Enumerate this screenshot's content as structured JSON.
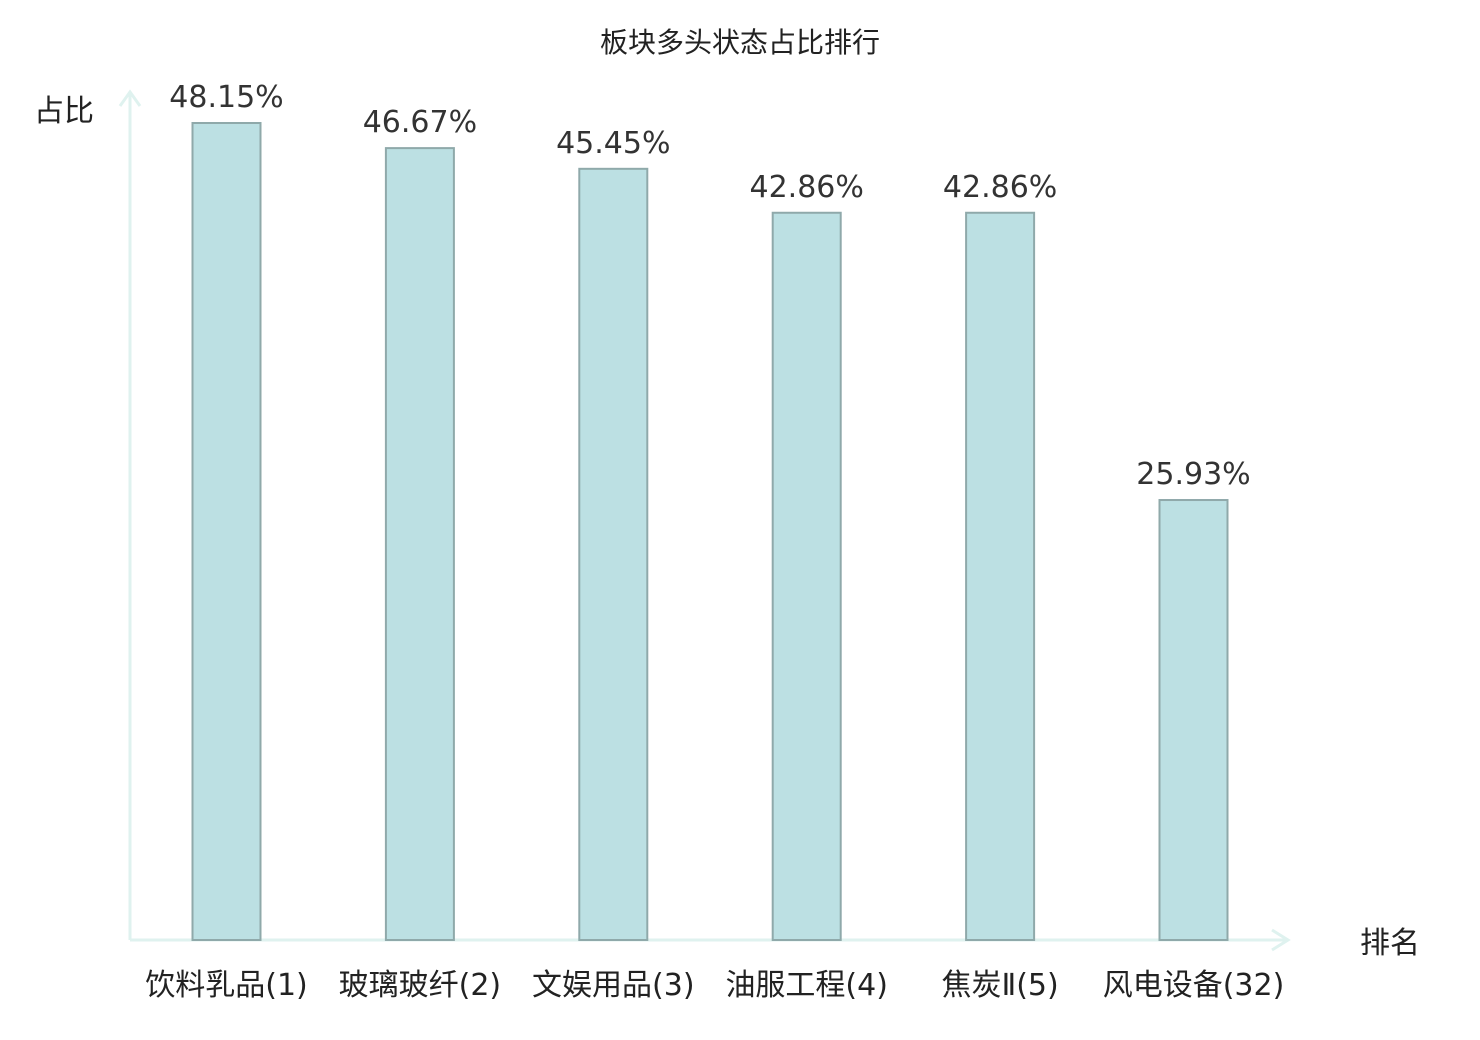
{
  "chart_data": {
    "type": "bar",
    "title": "板块多头状态占比排行",
    "ylabel": "占比",
    "xlabel": "排名",
    "categories": [
      "饮料乳品(1)",
      "玻璃玻纤(2)",
      "文娱用品(3)",
      "油服工程(4)",
      "焦炭Ⅱ(5)",
      "风电设备(32)"
    ],
    "values": [
      48.15,
      46.67,
      45.45,
      42.86,
      42.86,
      25.93
    ],
    "value_labels": [
      "48.15%",
      "46.67%",
      "45.45%",
      "42.86%",
      "42.86%",
      "25.93%"
    ],
    "highlight_index": 5,
    "ylim": [
      0,
      48.15
    ],
    "grid": false,
    "legend": "none",
    "colors": {
      "bar_fill": "#bce0e3",
      "bar_stroke": "#8fa9aa",
      "axis": "#dff2ef",
      "highlight_label": "#e8201c",
      "text": "#222222"
    }
  }
}
